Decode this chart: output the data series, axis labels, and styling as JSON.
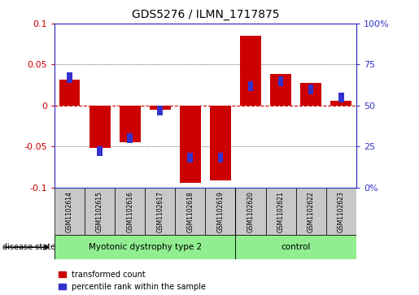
{
  "title": "GDS5276 / ILMN_1717875",
  "samples": [
    "GSM1102614",
    "GSM1102615",
    "GSM1102616",
    "GSM1102617",
    "GSM1102618",
    "GSM1102619",
    "GSM1102620",
    "GSM1102621",
    "GSM1102622",
    "GSM1102623"
  ],
  "red_values": [
    0.032,
    -0.052,
    -0.045,
    -0.005,
    -0.095,
    -0.092,
    0.085,
    0.038,
    0.028,
    0.006
  ],
  "blue_pct": [
    67,
    22,
    30,
    47,
    18,
    18,
    62,
    65,
    60,
    55
  ],
  "groups": [
    {
      "label": "Myotonic dystrophy type 2",
      "start": 0,
      "end": 6
    },
    {
      "label": "control",
      "start": 6,
      "end": 10
    }
  ],
  "group_separator": 6,
  "ylim": [
    -0.1,
    0.1
  ],
  "y2lim": [
    0,
    100
  ],
  "yticks": [
    -0.1,
    -0.05,
    0.0,
    0.05,
    0.1
  ],
  "ytick_labels": [
    "-0.1",
    "-0.05",
    "0",
    "0.05",
    "0.1"
  ],
  "y2ticks": [
    0,
    25,
    50,
    75,
    100
  ],
  "y2tick_labels": [
    "0%",
    "25",
    "50",
    "75",
    "100%"
  ],
  "legend_red": "transformed count",
  "legend_blue": "percentile rank within the sample",
  "disease_state_label": "disease state",
  "red_color": "#CC0000",
  "blue_color": "#3333CC",
  "bg_label": "#C8C8C8",
  "bg_group": "#90EE90"
}
